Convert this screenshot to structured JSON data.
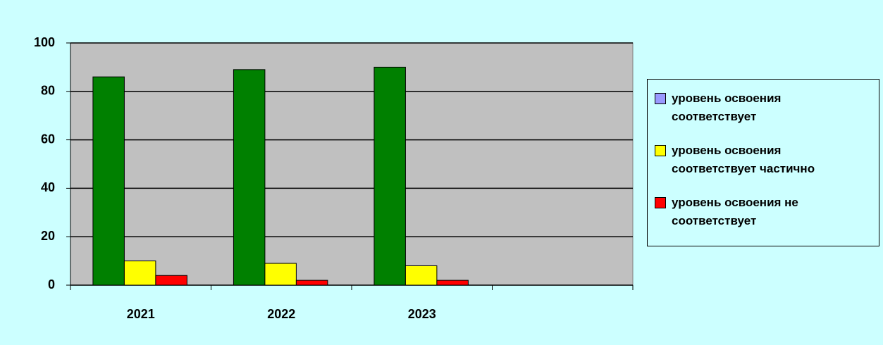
{
  "chart_data": {
    "type": "bar",
    "categories": [
      "2021",
      "2022",
      "2023",
      null
    ],
    "series": [
      {
        "name": "уровень освоения соответствует",
        "color": "#008000",
        "legend_color": "#9999ff",
        "values": [
          86,
          89,
          90,
          null
        ]
      },
      {
        "name": "уровень освоения соответствует частично",
        "color": "#ffff00",
        "values": [
          10,
          9,
          8,
          null
        ]
      },
      {
        "name": "уровень освоения не соответствует",
        "color": "#ff0000",
        "values": [
          4,
          2,
          2,
          null
        ]
      }
    ],
    "ylim": [
      0,
      100
    ],
    "yticks": [
      0,
      20,
      40,
      60,
      80,
      100
    ],
    "grid": true,
    "legend": "right"
  }
}
